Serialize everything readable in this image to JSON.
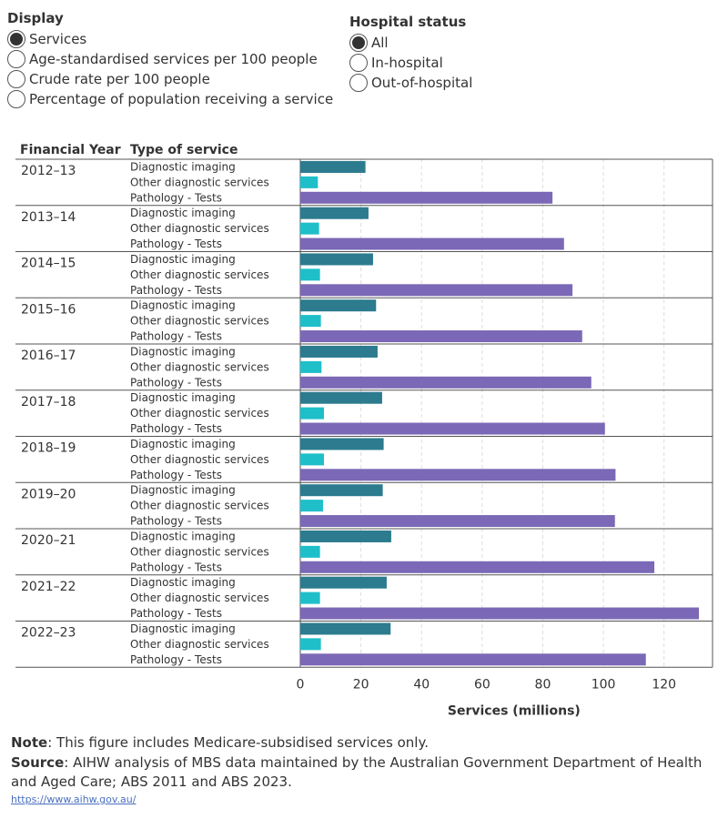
{
  "controls": {
    "display": {
      "title": "Display",
      "options": [
        {
          "label": "Services",
          "selected": true
        },
        {
          "label": "Age-standardised services per 100 people",
          "selected": false
        },
        {
          "label": "Crude rate per 100 people",
          "selected": false
        },
        {
          "label": "Percentage of population receiving a service",
          "selected": false
        }
      ]
    },
    "hospital_status": {
      "title": "Hospital status",
      "options": [
        {
          "label": "All",
          "selected": true
        },
        {
          "label": "In-hospital",
          "selected": false
        },
        {
          "label": "Out-of-hospital",
          "selected": false
        }
      ]
    }
  },
  "chart_data": {
    "type": "bar",
    "orientation": "horizontal",
    "row_header_1": "Financial Year",
    "row_header_2": "Type of service",
    "xlabel": "Services (millions)",
    "xlim": [
      0,
      136
    ],
    "xticks": [
      0,
      20,
      40,
      60,
      80,
      100,
      120
    ],
    "grid": true,
    "series": [
      {
        "name": "Diagnostic imaging",
        "color": "#2c7b8f"
      },
      {
        "name": "Other diagnostic services",
        "color": "#1fbfc9"
      },
      {
        "name": "Pathology - Tests",
        "color": "#7b68b6"
      }
    ],
    "groups": [
      {
        "year": "2012–13",
        "values": [
          21.5,
          5.8,
          83.2
        ]
      },
      {
        "year": "2013–14",
        "values": [
          22.5,
          6.2,
          87.0
        ]
      },
      {
        "year": "2014–15",
        "values": [
          24.0,
          6.5,
          89.8
        ]
      },
      {
        "year": "2015–16",
        "values": [
          25.0,
          6.8,
          93.0
        ]
      },
      {
        "year": "2016–17",
        "values": [
          25.5,
          7.0,
          96.0
        ]
      },
      {
        "year": "2017–18",
        "values": [
          27.0,
          7.8,
          100.5
        ]
      },
      {
        "year": "2018–19",
        "values": [
          27.5,
          7.8,
          104.0
        ]
      },
      {
        "year": "2019–20",
        "values": [
          27.2,
          7.5,
          103.8
        ]
      },
      {
        "year": "2020–21",
        "values": [
          30.0,
          6.5,
          116.8
        ]
      },
      {
        "year": "2021–22",
        "values": [
          28.5,
          6.5,
          131.5
        ]
      },
      {
        "year": "2022–23",
        "values": [
          29.8,
          6.8,
          114.0
        ]
      }
    ]
  },
  "note": {
    "note_label": "Note",
    "note_text": ": This figure includes Medicare-subsidised services only.",
    "source_label": "Source",
    "source_text": ": AIHW analysis of MBS data maintained by the Australian Government Department of Health and Aged Care; ABS 2011 and ABS 2023."
  },
  "link_text": "https://www.aihw.gov.au/"
}
